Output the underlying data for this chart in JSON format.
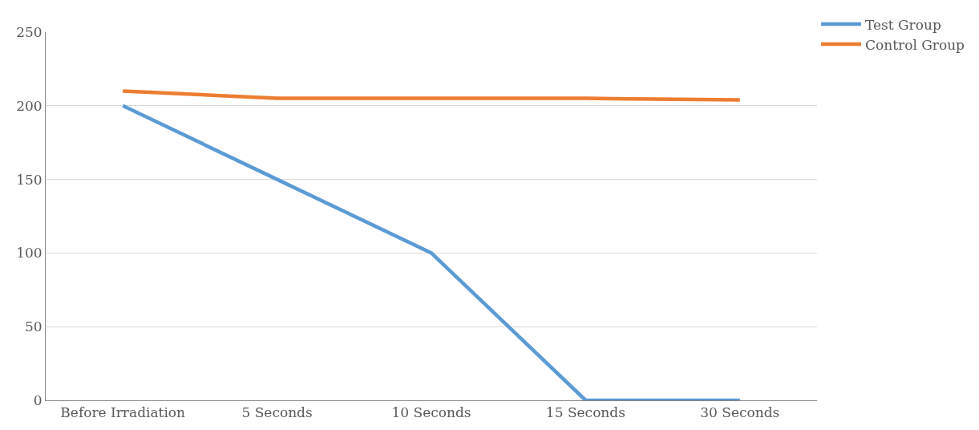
{
  "chart_data": {
    "type": "line",
    "categories": [
      "Before Irradiation",
      "5 Seconds",
      "10 Seconds",
      "15 Seconds",
      "30 Seconds"
    ],
    "series": [
      {
        "name": "Test Group",
        "color": "#5b9bd5",
        "values": [
          200,
          150,
          100,
          0,
          0
        ]
      },
      {
        "name": "Control Group",
        "color": "#ed7d31",
        "values": [
          210,
          205,
          205,
          205,
          204
        ]
      }
    ],
    "ylim": [
      0,
      250
    ],
    "yticks": [
      0,
      50,
      100,
      150,
      200,
      250
    ],
    "grid": "y",
    "legend": "top right",
    "marker": "none",
    "line_style": "solid"
  }
}
